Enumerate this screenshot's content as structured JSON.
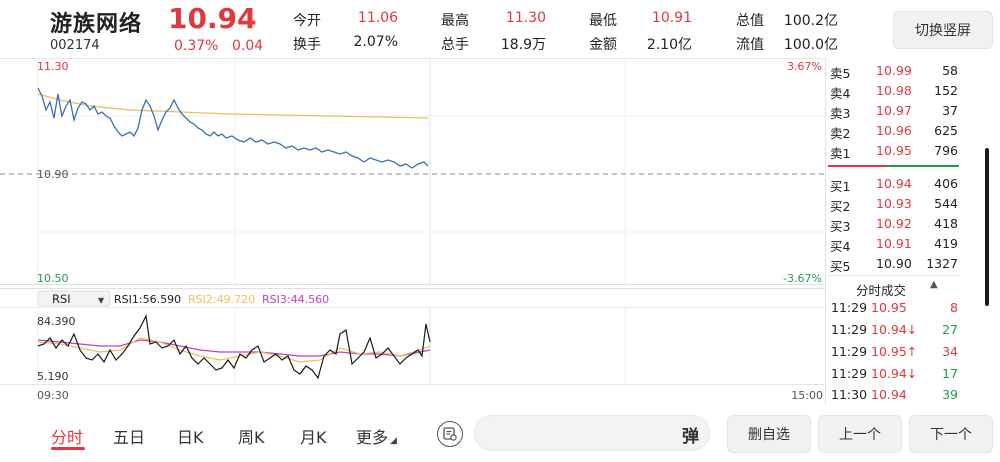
{
  "header": {
    "name": "游族网络",
    "price": "10.94",
    "code": "002174",
    "change_pct": "0.37%",
    "change_amt": "0.04",
    "switch_button": "切换竖屏",
    "quotes": [
      {
        "label": "今开",
        "value": "11.06",
        "color": "#e0383e"
      },
      {
        "label": "最高",
        "value": "11.30",
        "color": "#e0383e"
      },
      {
        "label": "最低",
        "value": "10.91",
        "color": "#e0383e"
      },
      {
        "label": "总值",
        "value": "100.2亿",
        "color": "#222222"
      },
      {
        "label": "换手",
        "value": "2.07%",
        "color": "#222222"
      },
      {
        "label": "总手",
        "value": "18.9万",
        "color": "#222222"
      },
      {
        "label": "金额",
        "value": "2.10亿",
        "color": "#222222"
      },
      {
        "label": "流值",
        "value": "100.0亿",
        "color": "#222222"
      }
    ]
  },
  "chart": {
    "y_top": "11.30",
    "y_mid": "10.90",
    "y_bottom": "10.50",
    "pct_top": "3.67%",
    "pct_bottom": "-3.67%",
    "x_start": "09:30",
    "x_end": "15:00"
  },
  "rsi": {
    "selector": "RSI",
    "rsi1": "RSI1:56.590",
    "rsi2": "RSI2:49.720",
    "rsi3": "RSI3:44.560",
    "y_top": "84.390",
    "y_bottom": "5.190"
  },
  "order_book": {
    "asks": [
      {
        "label": "卖5",
        "price": "10.99",
        "volume": "58"
      },
      {
        "label": "卖4",
        "price": "10.98",
        "volume": "152"
      },
      {
        "label": "卖3",
        "price": "10.97",
        "volume": "37"
      },
      {
        "label": "卖2",
        "price": "10.96",
        "volume": "625"
      },
      {
        "label": "卖1",
        "price": "10.95",
        "volume": "796"
      }
    ],
    "bids": [
      {
        "label": "买1",
        "price": "10.94",
        "volume": "406"
      },
      {
        "label": "买2",
        "price": "10.93",
        "volume": "544"
      },
      {
        "label": "买3",
        "price": "10.92",
        "volume": "418"
      },
      {
        "label": "买4",
        "price": "10.91",
        "volume": "419"
      },
      {
        "label": "买5",
        "price": "10.90",
        "volume": "1327"
      }
    ]
  },
  "ticks": {
    "title": "分时成交",
    "rows": [
      {
        "time": "11:29",
        "price": "10.95",
        "arrow": "",
        "volume": "8",
        "price_color": "#e0383e",
        "vol_color": "#e0383e"
      },
      {
        "time": "11:29",
        "price": "10.94",
        "arrow": "↓",
        "volume": "27",
        "price_color": "#e0383e",
        "vol_color": "#1e9e4a"
      },
      {
        "time": "11:29",
        "price": "10.95",
        "arrow": "↑",
        "volume": "34",
        "price_color": "#e0383e",
        "vol_color": "#e0383e"
      },
      {
        "time": "11:29",
        "price": "10.94",
        "arrow": "↓",
        "volume": "17",
        "price_color": "#e0383e",
        "vol_color": "#1e9e4a"
      },
      {
        "time": "11:30",
        "price": "10.94",
        "arrow": "",
        "volume": "39",
        "price_color": "#e0383e",
        "vol_color": "#1e9e4a"
      }
    ]
  },
  "footer": {
    "tabs": [
      "分时",
      "五日",
      "日K",
      "周K",
      "月K",
      "更多"
    ],
    "search_placeholder": "",
    "danmu": "弹",
    "buttons": [
      "删自选",
      "上一个",
      "下一个"
    ]
  },
  "colors": {
    "up": "#e0383e",
    "down": "#1e9e4a",
    "price_line": "#3a6fb3",
    "avg_line": "#e8c15a",
    "rsi1": "#1a1a1a",
    "rsi2": "#e8c15a",
    "rsi3": "#c040c0"
  }
}
